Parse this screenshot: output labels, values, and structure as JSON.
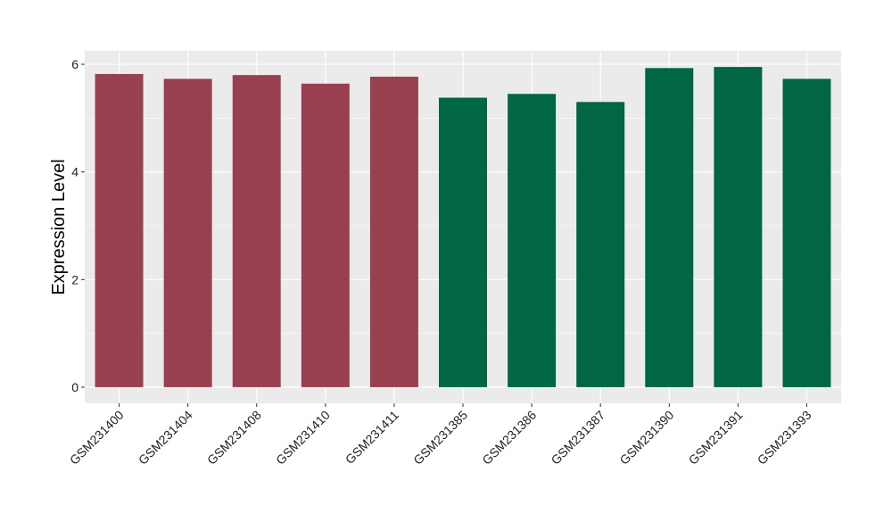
{
  "chart_data": {
    "type": "bar",
    "title": "",
    "xlabel": "",
    "ylabel": "Expression Level",
    "ylim": [
      -0.3,
      6.25
    ],
    "yticks": [
      0,
      2,
      4,
      6
    ],
    "grid": true,
    "legend": "none",
    "categories": [
      "GSM231400",
      "GSM231404",
      "GSM231408",
      "GSM231410",
      "GSM231411",
      "GSM231385",
      "GSM231386",
      "GSM231387",
      "GSM231390",
      "GSM231391",
      "GSM231393"
    ],
    "values": [
      5.82,
      5.73,
      5.8,
      5.64,
      5.77,
      5.38,
      5.45,
      5.3,
      5.93,
      5.95,
      5.73
    ],
    "bar_colors": [
      "#98404f",
      "#98404f",
      "#98404f",
      "#98404f",
      "#98404f",
      "#006644",
      "#006644",
      "#006644",
      "#006644",
      "#006644",
      "#006644"
    ],
    "panel_color": "#ebebeb",
    "grid_color": "#ffffff"
  }
}
